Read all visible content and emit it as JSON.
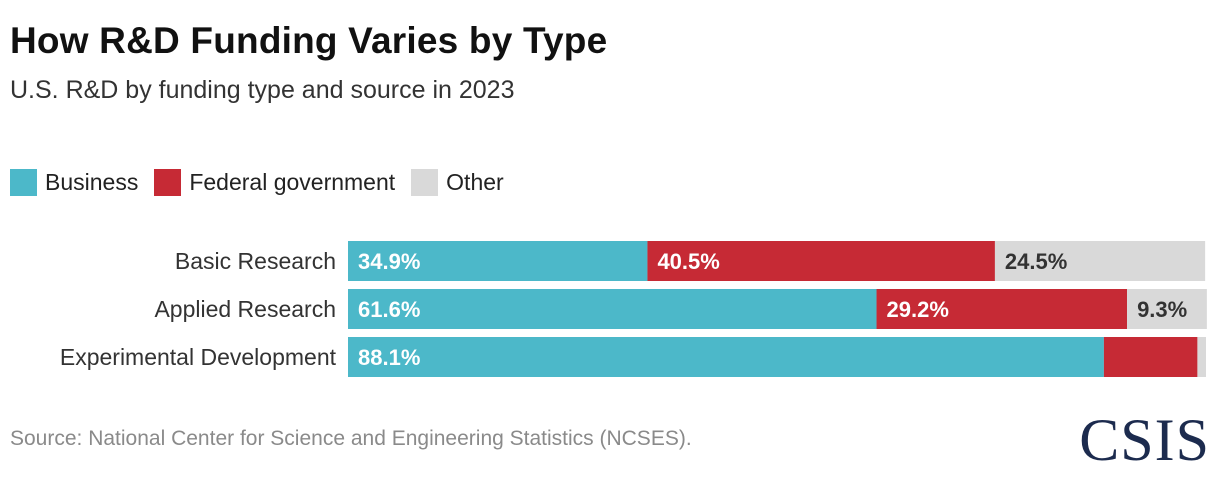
{
  "title": "How R&D Funding Varies by Type",
  "subtitle": "U.S. R&D by funding type and source in 2023",
  "source": "Source: National Center for Science and Engineering Statistics (NCSES).",
  "logo": "CSIS",
  "legend": [
    {
      "name": "Business",
      "color": "#4cb8c9"
    },
    {
      "name": "Federal government",
      "color": "#c62a35"
    },
    {
      "name": "Other",
      "color": "#d9d9d9"
    }
  ],
  "chart_data": {
    "type": "bar",
    "orientation": "horizontal",
    "stacked": true,
    "categories": [
      "Basic Research",
      "Applied Research",
      "Experimental Development"
    ],
    "series": [
      {
        "name": "Business",
        "color": "#4cb8c9",
        "values": [
          34.9,
          61.6,
          88.1
        ],
        "labels": [
          "34.9%",
          "61.6%",
          "88.1%"
        ]
      },
      {
        "name": "Federal government",
        "color": "#c62a35",
        "values": [
          40.5,
          29.2,
          10.9
        ],
        "labels": [
          "40.5%",
          "29.2%",
          ""
        ]
      },
      {
        "name": "Other",
        "color": "#d9d9d9",
        "values": [
          24.5,
          9.3,
          1.0
        ],
        "labels": [
          "24.5%",
          "9.3%",
          ""
        ]
      }
    ],
    "xlim": [
      0,
      100
    ],
    "title": "How R&D Funding Varies by Type",
    "subtitle": "U.S. R&D by funding type and source in 2023",
    "xlabel": "",
    "ylabel": "",
    "grid": false,
    "legend_position": "top-left"
  }
}
